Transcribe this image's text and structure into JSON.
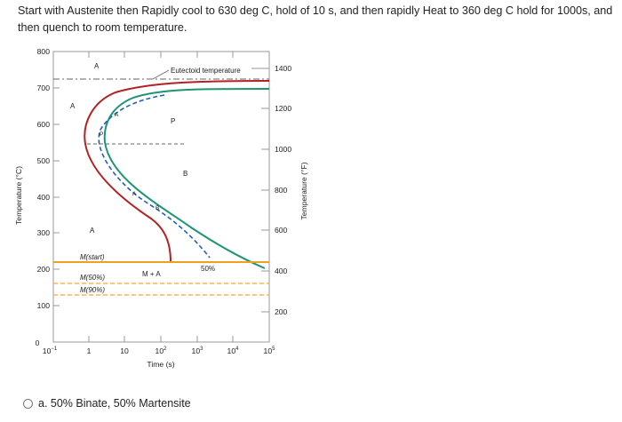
{
  "question": {
    "text": "Start with Austenite then Rapidly cool to 630 deg C, hold of 10 s, and then rapidly Heat to 360 deg C hold for 1000s, and then quench to room temperature."
  },
  "diagram": {
    "y_left_label": "Temperature (°C)",
    "y_right_label": "Temperature (°F)",
    "x_label": "Time (s)",
    "y_left_ticks": [
      "800",
      "700",
      "600",
      "500",
      "400",
      "300",
      "200",
      "100",
      "0"
    ],
    "y_right_ticks": [
      "1400",
      "1200",
      "1000",
      "800",
      "600",
      "400",
      "200"
    ],
    "x_ticks": {
      "t0": {
        "base": "10",
        "exp": "−1"
      },
      "t1": "1",
      "t2": "10",
      "t3": {
        "base": "10",
        "exp": "2"
      },
      "t4": {
        "base": "10",
        "exp": "3"
      },
      "t5": {
        "base": "10",
        "exp": "4"
      },
      "t6": {
        "base": "10",
        "exp": "5"
      }
    },
    "labels": {
      "eutectoid": "Eutectoid temperature",
      "a_top": "A",
      "a_left": "A",
      "a_mid": "A",
      "p": "P",
      "b": "B",
      "m_start": "M(start)",
      "m_50": "M(50%)",
      "m_90": "M(90%)",
      "m_plus_a": "M + A",
      "pct_50": "50%",
      "a_p": "A",
      "p_small": "P",
      "a_b": "A",
      "b_small": "B"
    },
    "colors": {
      "start_curve": "#b22222",
      "finish_curve": "#1e9473",
      "blue_dashed": "#1f5fbf",
      "martensite_line": "#f0a020",
      "martensite_dashed": "#f2b860"
    }
  },
  "answer_options": [
    {
      "label": "a. 50% Binate, 50% Martensite"
    }
  ]
}
